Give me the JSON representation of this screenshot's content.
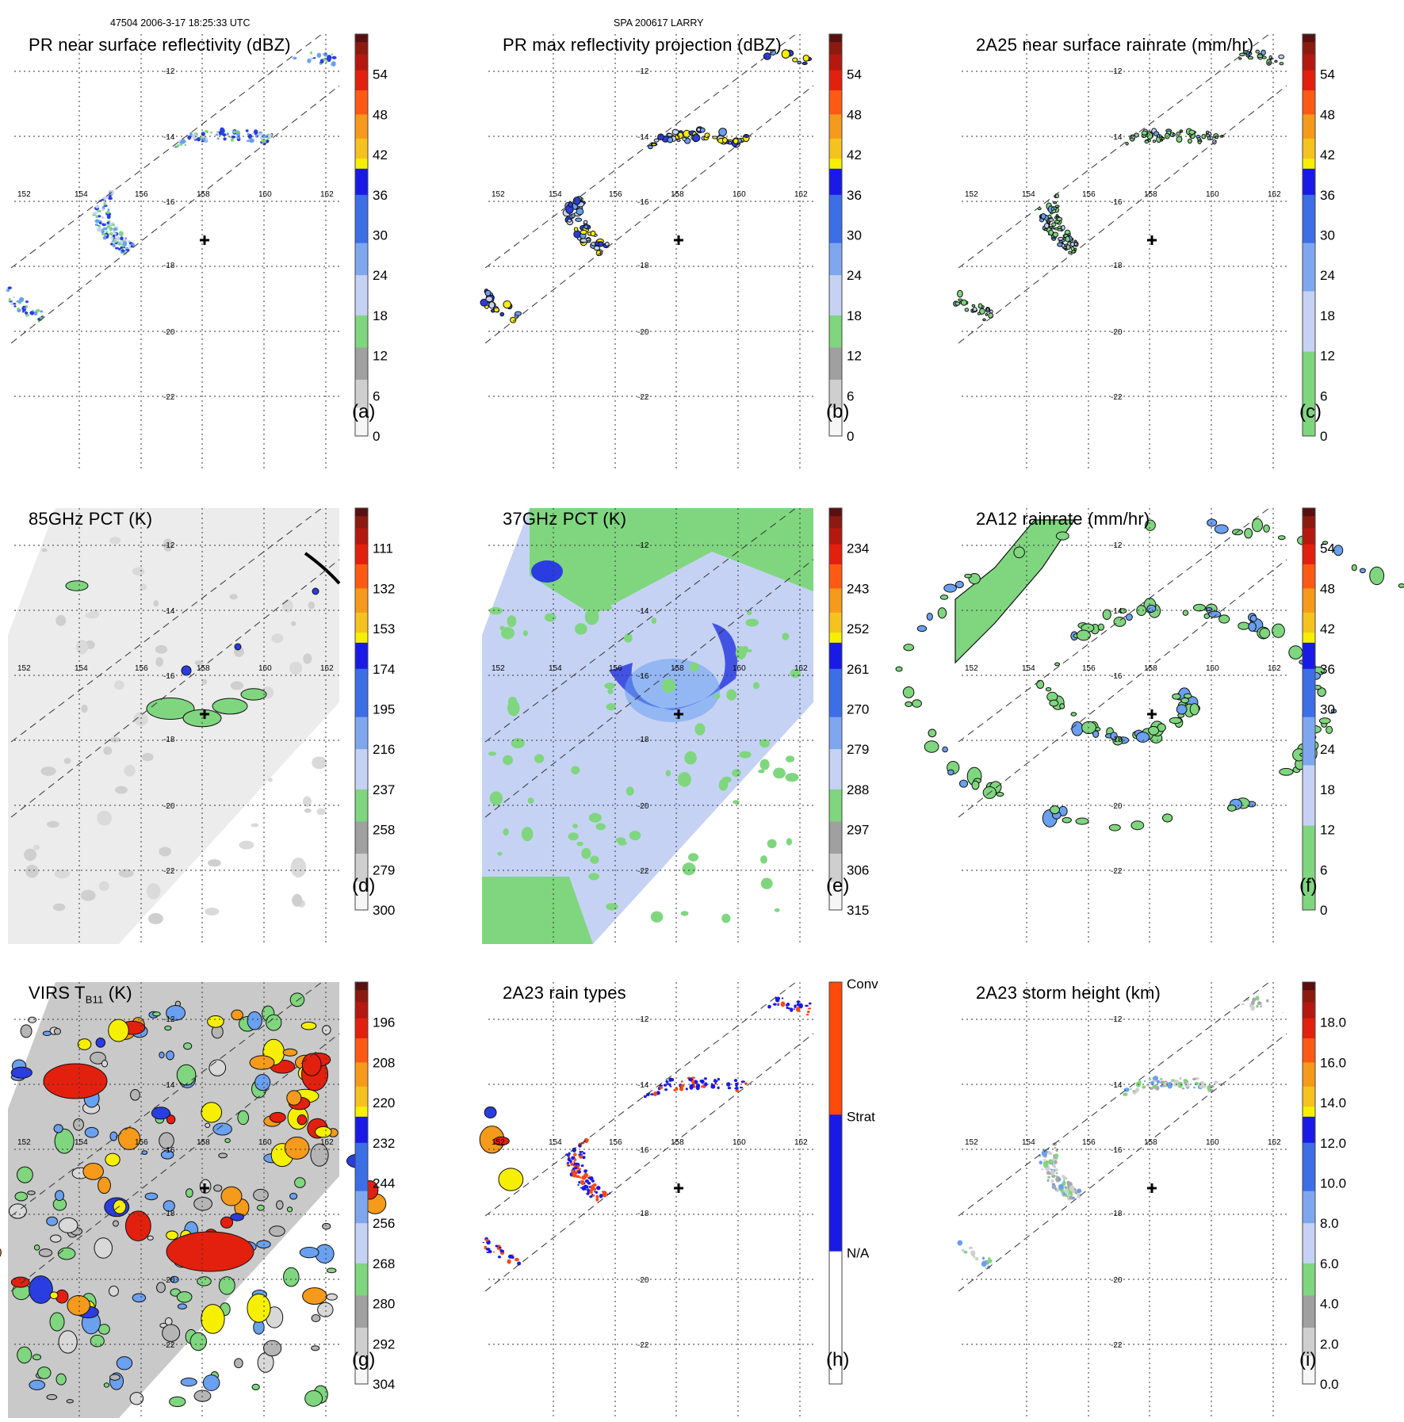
{
  "header": {
    "left": "47504 2006-3-17 18:25:33 UTC",
    "center": "SPA 200617 LARRY"
  },
  "grid": {
    "lon_labels": [
      "152",
      "154",
      "156",
      "158",
      "160",
      "162"
    ],
    "lat_labels": [
      "-12",
      "-14",
      "-16",
      "-18",
      "-20",
      "-22"
    ]
  },
  "colors": {
    "green": "#7fd67f",
    "blue_light": "#c6d2f4",
    "blue_mid": "#6aa0f0",
    "blue": "#2a3de0",
    "yellow": "#f6f000",
    "orange": "#f59a1a",
    "red": "#e3200e",
    "darkred": "#5a1010",
    "gray": "#a8a8a8",
    "rain_conv": "#ff4a0a",
    "rain_strat": "#1a1ae6"
  },
  "panels": [
    {
      "id": "a",
      "title": "PR near surface reflectivity (dBZ)",
      "label": "(a)",
      "colorbar": {
        "type": "dbz",
        "ticks": [
          "54",
          "48",
          "42",
          "36",
          "30",
          "24",
          "18",
          "12",
          "6",
          "0"
        ]
      }
    },
    {
      "id": "b",
      "title": "PR max reflectivity projection (dBZ)",
      "label": "(b)",
      "colorbar": {
        "type": "dbz",
        "ticks": [
          "54",
          "48",
          "42",
          "36",
          "30",
          "24",
          "18",
          "12",
          "6",
          "0"
        ]
      }
    },
    {
      "id": "c",
      "title": "2A25 near surface rainrate (mm/hr)",
      "label": "(c)",
      "colorbar": {
        "type": "rain",
        "ticks": [
          "54",
          "48",
          "42",
          "36",
          "30",
          "24",
          "18",
          "12",
          "6",
          "0"
        ]
      }
    },
    {
      "id": "d",
      "title": "85GHz PCT (K)",
      "label": "(d)",
      "colorbar": {
        "type": "dbz",
        "ticks": [
          "111",
          "132",
          "153",
          "174",
          "195",
          "216",
          "237",
          "258",
          "279",
          "300"
        ]
      }
    },
    {
      "id": "e",
      "title": "37GHz PCT (K)",
      "label": "(e)",
      "colorbar": {
        "type": "dbz",
        "ticks": [
          "234",
          "243",
          "252",
          "261",
          "270",
          "279",
          "288",
          "297",
          "306",
          "315"
        ]
      }
    },
    {
      "id": "f",
      "title": "2A12 rainrate (mm/hr)",
      "label": "(f)",
      "colorbar": {
        "type": "rain",
        "ticks": [
          "54",
          "48",
          "42",
          "36",
          "30",
          "24",
          "18",
          "12",
          "6",
          "0"
        ]
      }
    },
    {
      "id": "g",
      "title_main": "VIRS T",
      "title_sub": "B11",
      "title_tail": " (K)",
      "label": "(g)",
      "colorbar": {
        "type": "dbz",
        "ticks": [
          "196",
          "208",
          "220",
          "232",
          "244",
          "256",
          "268",
          "280",
          "292",
          "304"
        ]
      }
    },
    {
      "id": "h",
      "title": "2A23 rain types",
      "label": "(h)",
      "colorbar": {
        "type": "raintype",
        "ticks": [
          "Conv",
          "Strat",
          "N/A"
        ]
      }
    },
    {
      "id": "i",
      "title": "2A23 storm height (km)",
      "label": "(i)",
      "colorbar": {
        "type": "dbz",
        "ticks": [
          "18.0",
          "16.0",
          "14.0",
          "12.0",
          "10.0",
          "8.0",
          "6.0",
          "4.0",
          "2.0",
          "0.0"
        ]
      }
    }
  ]
}
